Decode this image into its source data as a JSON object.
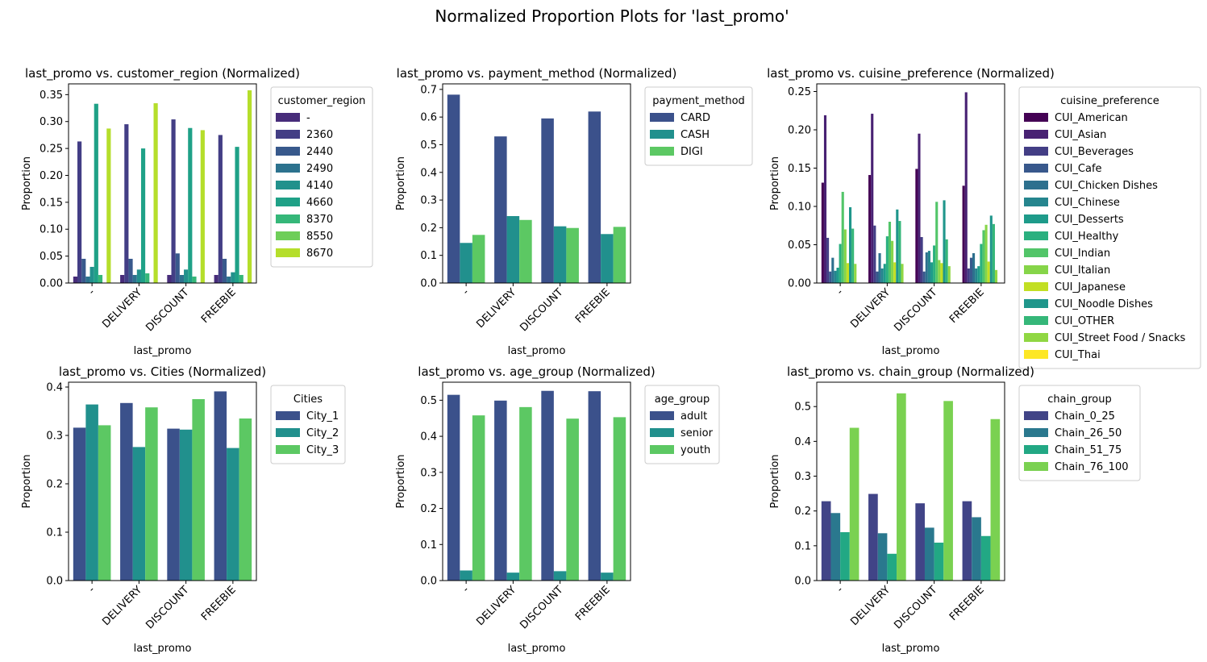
{
  "figure": {
    "suptitle": "Normalized Proportion Plots for 'last_promo'"
  },
  "palette": [
    "#472c7a",
    "#3b518b",
    "#2c718e",
    "#21908d",
    "#27ad81",
    "#5cc863",
    "#aadc32"
  ],
  "chart_data": [
    {
      "type": "bar",
      "title": "last_promo vs. customer_region (Normalized)",
      "xlabel": "last_promo",
      "ylabel": "Proportion",
      "categories": [
        "-",
        "DELIVERY",
        "DISCOUNT",
        "FREEBIE"
      ],
      "ylim": [
        0,
        0.37
      ],
      "yticks": [
        "0.00",
        "0.05",
        "0.10",
        "0.15",
        "0.20",
        "0.25",
        "0.30",
        "0.35"
      ],
      "legend": {
        "title": "customer_region",
        "placement": "outside-right"
      },
      "series": [
        {
          "name": "-",
          "color": "#472c7a",
          "values": [
            0.012,
            0.015,
            0.015,
            0.015
          ]
        },
        {
          "name": "2360",
          "color": "#433e85",
          "values": [
            0.263,
            0.295,
            0.304,
            0.275
          ]
        },
        {
          "name": "2440",
          "color": "#38598c",
          "values": [
            0.045,
            0.045,
            0.055,
            0.045
          ]
        },
        {
          "name": "2490",
          "color": "#2c728e",
          "values": [
            0.012,
            0.015,
            0.015,
            0.012
          ]
        },
        {
          "name": "4140",
          "color": "#21918c",
          "values": [
            0.03,
            0.025,
            0.025,
            0.02
          ]
        },
        {
          "name": "4660",
          "color": "#1fa187",
          "values": [
            0.333,
            0.25,
            0.288,
            0.253
          ]
        },
        {
          "name": "8370",
          "color": "#35b779",
          "values": [
            0.015,
            0.018,
            0.012,
            0.015
          ]
        },
        {
          "name": "8550",
          "color": "#6ece58",
          "values": [
            0.0,
            0.0,
            0.0,
            0.0
          ]
        },
        {
          "name": "8670",
          "color": "#b5de2b",
          "values": [
            0.287,
            0.334,
            0.284,
            0.358
          ]
        }
      ]
    },
    {
      "type": "bar",
      "title": "last_promo vs. payment_method (Normalized)",
      "xlabel": "last_promo",
      "ylabel": "Proportion",
      "categories": [
        "-",
        "DELIVERY",
        "DISCOUNT",
        "FREEBIE"
      ],
      "ylim": [
        0,
        0.72
      ],
      "yticks": [
        "0.0",
        "0.1",
        "0.2",
        "0.3",
        "0.4",
        "0.5",
        "0.6",
        "0.7"
      ],
      "legend": {
        "title": "payment_method",
        "placement": "outside-right"
      },
      "series": [
        {
          "name": "CARD",
          "color": "#3b518b",
          "values": [
            0.681,
            0.53,
            0.595,
            0.62
          ]
        },
        {
          "name": "CASH",
          "color": "#21908d",
          "values": [
            0.145,
            0.242,
            0.205,
            0.177
          ]
        },
        {
          "name": "DIGI",
          "color": "#5cc863",
          "values": [
            0.174,
            0.228,
            0.199,
            0.203
          ]
        }
      ]
    },
    {
      "type": "bar",
      "title": "last_promo vs. cuisine_preference (Normalized)",
      "xlabel": "last_promo",
      "ylabel": "Proportion",
      "categories": [
        "-",
        "DELIVERY",
        "DISCOUNT",
        "FREEBIE"
      ],
      "ylim": [
        0,
        0.26
      ],
      "yticks": [
        "0.00",
        "0.05",
        "0.10",
        "0.15",
        "0.20",
        "0.25"
      ],
      "legend": {
        "title": "cuisine_preference",
        "placement": "outside-right"
      },
      "series": [
        {
          "name": "CUI_American",
          "color": "#440154",
          "values": [
            0.131,
            0.141,
            0.149,
            0.127
          ]
        },
        {
          "name": "CUI_Asian",
          "color": "#482173",
          "values": [
            0.219,
            0.221,
            0.195,
            0.249
          ]
        },
        {
          "name": "CUI_Beverages",
          "color": "#433e85",
          "values": [
            0.059,
            0.075,
            0.06,
            0.019
          ]
        },
        {
          "name": "CUI_Cafe",
          "color": "#38588c",
          "values": [
            0.015,
            0.015,
            0.015,
            0.033
          ]
        },
        {
          "name": "CUI_Chicken Dishes",
          "color": "#2d708e",
          "values": [
            0.033,
            0.039,
            0.04,
            0.039
          ]
        },
        {
          "name": "CUI_Chinese",
          "color": "#25858e",
          "values": [
            0.016,
            0.019,
            0.042,
            0.019
          ]
        },
        {
          "name": "CUI_Desserts",
          "color": "#1e9b8a",
          "values": [
            0.02,
            0.025,
            0.027,
            0.022
          ]
        },
        {
          "name": "CUI_Healthy",
          "color": "#2ab07f",
          "values": [
            0.051,
            0.061,
            0.049,
            0.051
          ]
        },
        {
          "name": "CUI_Indian",
          "color": "#52c569",
          "values": [
            0.119,
            0.08,
            0.106,
            0.069
          ]
        },
        {
          "name": "CUI_Italian",
          "color": "#86d549",
          "values": [
            0.07,
            0.055,
            0.03,
            0.076
          ]
        },
        {
          "name": "CUI_Japanese",
          "color": "#c2df23",
          "values": [
            0.026,
            0.027,
            0.026,
            0.028
          ]
        },
        {
          "name": "CUI_Noodle Dishes",
          "color": "#1f968b",
          "values": [
            0.099,
            0.096,
            0.108,
            0.088
          ]
        },
        {
          "name": "CUI_OTHER",
          "color": "#35b779",
          "values": [
            0.071,
            0.081,
            0.057,
            0.077
          ]
        },
        {
          "name": "CUI_Street Food / Snacks",
          "color": "#90d743",
          "values": [
            0.025,
            0.025,
            0.022,
            0.017
          ]
        },
        {
          "name": "CUI_Thai",
          "color": "#fde725",
          "values": [
            0.0,
            0.0,
            0.0,
            0.0
          ]
        }
      ]
    },
    {
      "type": "bar",
      "title": "last_promo vs. Cities (Normalized)",
      "xlabel": "last_promo",
      "ylabel": "Proportion",
      "categories": [
        "-",
        "DELIVERY",
        "DISCOUNT",
        "FREEBIE"
      ],
      "ylim": [
        0,
        0.41
      ],
      "yticks": [
        "0.0",
        "0.1",
        "0.2",
        "0.3",
        "0.4"
      ],
      "legend": {
        "title": "Cities",
        "placement": "outside-right"
      },
      "series": [
        {
          "name": "City_1",
          "color": "#3b518b",
          "values": [
            0.316,
            0.367,
            0.314,
            0.391
          ]
        },
        {
          "name": "City_2",
          "color": "#21908d",
          "values": [
            0.364,
            0.276,
            0.312,
            0.274
          ]
        },
        {
          "name": "City_3",
          "color": "#5cc863",
          "values": [
            0.321,
            0.358,
            0.375,
            0.335
          ]
        }
      ]
    },
    {
      "type": "bar",
      "title": "last_promo vs. age_group (Normalized)",
      "xlabel": "last_promo",
      "ylabel": "Proportion",
      "categories": [
        "-",
        "DELIVERY",
        "DISCOUNT",
        "FREEBIE"
      ],
      "ylim": [
        0,
        0.55
      ],
      "yticks": [
        "0.0",
        "0.1",
        "0.2",
        "0.3",
        "0.4",
        "0.5"
      ],
      "legend": {
        "title": "age_group",
        "placement": "outside-right"
      },
      "series": [
        {
          "name": "adult",
          "color": "#3b518b",
          "values": [
            0.515,
            0.499,
            0.526,
            0.525
          ]
        },
        {
          "name": "senior",
          "color": "#21908d",
          "values": [
            0.028,
            0.022,
            0.026,
            0.022
          ]
        },
        {
          "name": "youth",
          "color": "#5cc863",
          "values": [
            0.458,
            0.481,
            0.449,
            0.453
          ]
        }
      ]
    },
    {
      "type": "bar",
      "title": "last_promo vs. chain_group (Normalized)",
      "xlabel": "last_promo",
      "ylabel": "Proportion",
      "categories": [
        "-",
        "DELIVERY",
        "DISCOUNT",
        "FREEBIE"
      ],
      "ylim": [
        0,
        0.57
      ],
      "yticks": [
        "0.0",
        "0.1",
        "0.2",
        "0.3",
        "0.4",
        "0.5"
      ],
      "legend": {
        "title": "chain_group",
        "placement": "outside-right"
      },
      "series": [
        {
          "name": "Chain_0_25",
          "color": "#414487",
          "values": [
            0.228,
            0.249,
            0.222,
            0.228
          ]
        },
        {
          "name": "Chain_26_50",
          "color": "#2a788e",
          "values": [
            0.194,
            0.136,
            0.152,
            0.182
          ]
        },
        {
          "name": "Chain_51_75",
          "color": "#22a884",
          "values": [
            0.139,
            0.077,
            0.109,
            0.128
          ]
        },
        {
          "name": "Chain_76_100",
          "color": "#7ad151",
          "values": [
            0.439,
            0.538,
            0.516,
            0.464
          ]
        }
      ]
    }
  ]
}
